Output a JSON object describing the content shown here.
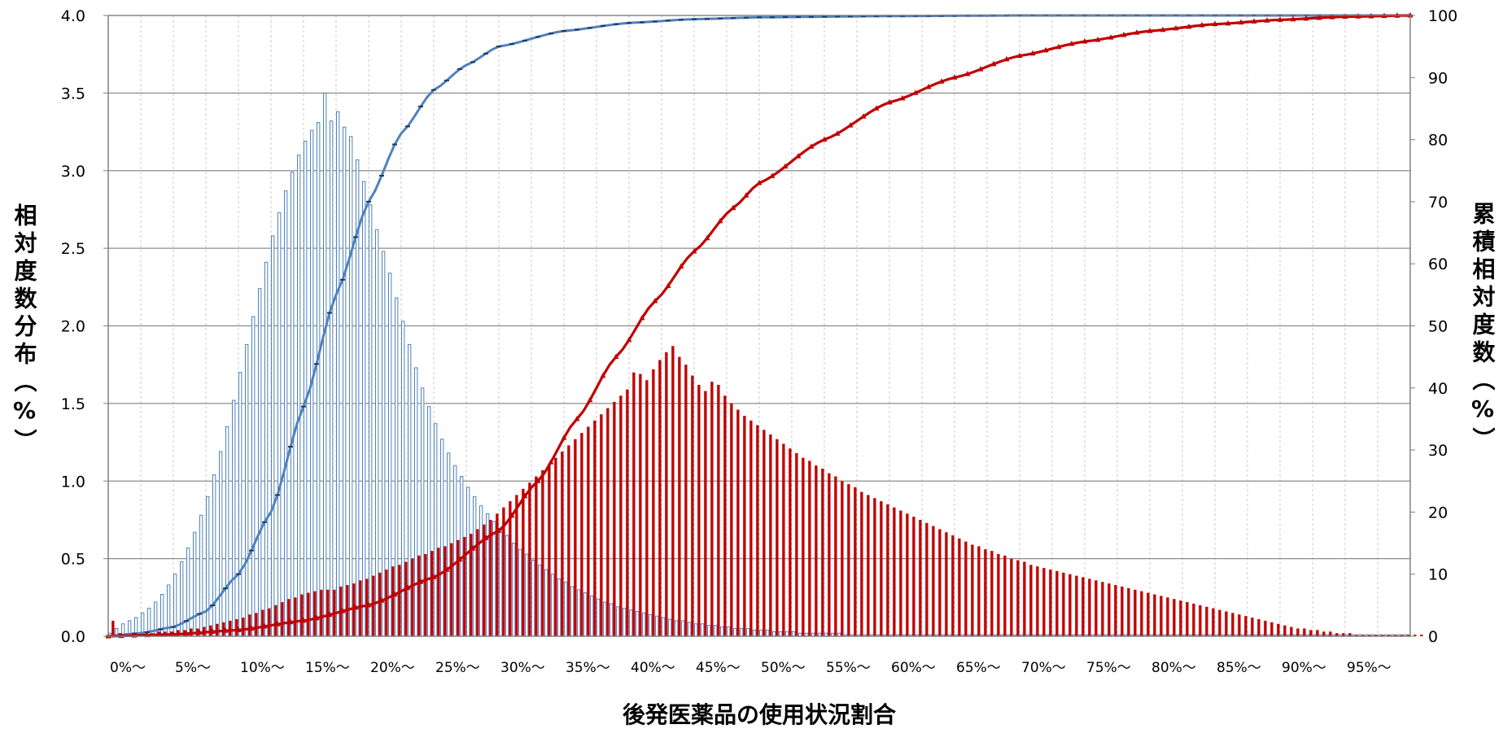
{
  "chart_data": {
    "type": "bar",
    "xlabel": "後発医薬品の使用状況割合",
    "ylabel_left": "相対度数分布（%）",
    "ylabel_right": "累積相対度数（%）",
    "ylim_left": [
      0,
      4.0
    ],
    "ylim_right": [
      0,
      100
    ],
    "yticks_left": [
      "0.0",
      "0.5",
      "1.0",
      "1.5",
      "2.0",
      "2.5",
      "3.0",
      "3.5",
      "4.0"
    ],
    "yticks_right": [
      "0",
      "10",
      "20",
      "30",
      "40",
      "50",
      "60",
      "70",
      "80",
      "90",
      "100"
    ],
    "x_tick_labels": [
      "0%～",
      "5%～",
      "10%～",
      "15%～",
      "20%～",
      "25%～",
      "30%～",
      "35%～",
      "40%～",
      "45%～",
      "50%～",
      "55%～",
      "60%～",
      "65%～",
      "70%～",
      "75%～",
      "80%～",
      "85%～",
      "90%～",
      "95%～"
    ],
    "grid": true,
    "series": [
      {
        "chart_type": "bar",
        "axis": "left",
        "color": "#4F81BD",
        "x_start": 0,
        "x_step": 0.5,
        "values": [
          0.02,
          0.05,
          0.08,
          0.1,
          0.12,
          0.15,
          0.18,
          0.22,
          0.27,
          0.33,
          0.4,
          0.48,
          0.57,
          0.67,
          0.78,
          0.9,
          1.04,
          1.19,
          1.35,
          1.52,
          1.7,
          1.88,
          2.06,
          2.24,
          2.41,
          2.58,
          2.73,
          2.87,
          2.99,
          3.1,
          3.19,
          3.26,
          3.31,
          3.5,
          3.32,
          3.38,
          3.28,
          3.22,
          3.07,
          2.93,
          2.78,
          2.62,
          2.48,
          2.34,
          2.18,
          2.03,
          1.88,
          1.73,
          1.6,
          1.48,
          1.37,
          1.27,
          1.18,
          1.1,
          1.03,
          0.96,
          0.9,
          0.84,
          0.79,
          0.74,
          0.69,
          0.65,
          0.6,
          0.56,
          0.53,
          0.49,
          0.46,
          0.43,
          0.4,
          0.37,
          0.35,
          0.32,
          0.3,
          0.28,
          0.26,
          0.24,
          0.22,
          0.21,
          0.19,
          0.18,
          0.17,
          0.16,
          0.15,
          0.14,
          0.13,
          0.12,
          0.11,
          0.1,
          0.1,
          0.09,
          0.08,
          0.08,
          0.07,
          0.07,
          0.06,
          0.06,
          0.05,
          0.05,
          0.05,
          0.04,
          0.04,
          0.04,
          0.03,
          0.03,
          0.03,
          0.03,
          0.02,
          0.02,
          0.02,
          0.02,
          0.02,
          0.02,
          0.02,
          0.01,
          0.01,
          0.01,
          0.01,
          0.01,
          0.01,
          0.01,
          0.01,
          0.01,
          0.01,
          0.01,
          0.01,
          0.01,
          0.01,
          0.01,
          0.01,
          0.01,
          0.01,
          0.01,
          0.01,
          0.01,
          0.01,
          0.01,
          0.01,
          0.01,
          0.01,
          0.01,
          0.01,
          0.01,
          0.01,
          0.01,
          0.01,
          0.01,
          0.01,
          0.01,
          0.01,
          0.01,
          0.01,
          0.01,
          0.01,
          0.01,
          0.01,
          0.01,
          0.01,
          0.01,
          0.01,
          0.01,
          0.01,
          0.01,
          0.01,
          0.01,
          0.01,
          0.01,
          0.01,
          0.01,
          0.01,
          0.01,
          0.01,
          0.01,
          0.01,
          0.01,
          0.01,
          0.01,
          0.01,
          0.01,
          0.01,
          0.01,
          0.01,
          0.01,
          0.01,
          0.01,
          0.01,
          0.01,
          0.01,
          0.01,
          0.01,
          0.01,
          0.01,
          0.01,
          0.01,
          0.01,
          0.01,
          0.01,
          0.01,
          0.01,
          0.01,
          0.01
        ]
      },
      {
        "chart_type": "bar",
        "axis": "left",
        "color": "#C00000",
        "x_start": 0,
        "x_step": 0.5,
        "values": [
          0.1,
          0.02,
          0.02,
          0.02,
          0.02,
          0.02,
          0.02,
          0.03,
          0.03,
          0.03,
          0.04,
          0.04,
          0.05,
          0.05,
          0.06,
          0.07,
          0.08,
          0.09,
          0.1,
          0.11,
          0.12,
          0.14,
          0.15,
          0.17,
          0.18,
          0.2,
          0.22,
          0.24,
          0.25,
          0.27,
          0.28,
          0.29,
          0.3,
          0.3,
          0.3,
          0.32,
          0.33,
          0.34,
          0.36,
          0.37,
          0.39,
          0.41,
          0.43,
          0.45,
          0.46,
          0.48,
          0.5,
          0.52,
          0.53,
          0.55,
          0.57,
          0.58,
          0.6,
          0.62,
          0.64,
          0.66,
          0.69,
          0.72,
          0.75,
          0.79,
          0.83,
          0.87,
          0.91,
          0.95,
          0.99,
          1.03,
          1.07,
          1.11,
          1.15,
          1.19,
          1.23,
          1.27,
          1.31,
          1.35,
          1.39,
          1.43,
          1.47,
          1.51,
          1.55,
          1.59,
          1.7,
          1.69,
          1.65,
          1.72,
          1.78,
          1.83,
          1.87,
          1.8,
          1.75,
          1.68,
          1.62,
          1.58,
          1.64,
          1.62,
          1.55,
          1.5,
          1.46,
          1.42,
          1.39,
          1.36,
          1.33,
          1.3,
          1.27,
          1.24,
          1.21,
          1.18,
          1.15,
          1.13,
          1.1,
          1.08,
          1.05,
          1.03,
          1.0,
          0.98,
          0.96,
          0.93,
          0.91,
          0.89,
          0.87,
          0.85,
          0.83,
          0.81,
          0.79,
          0.77,
          0.75,
          0.73,
          0.71,
          0.69,
          0.67,
          0.65,
          0.63,
          0.61,
          0.59,
          0.58,
          0.56,
          0.55,
          0.53,
          0.52,
          0.5,
          0.49,
          0.48,
          0.46,
          0.45,
          0.44,
          0.43,
          0.42,
          0.41,
          0.4,
          0.39,
          0.38,
          0.37,
          0.36,
          0.35,
          0.34,
          0.33,
          0.32,
          0.31,
          0.3,
          0.29,
          0.28,
          0.27,
          0.26,
          0.25,
          0.24,
          0.23,
          0.22,
          0.21,
          0.2,
          0.19,
          0.18,
          0.17,
          0.16,
          0.15,
          0.14,
          0.13,
          0.12,
          0.11,
          0.1,
          0.09,
          0.08,
          0.07,
          0.06,
          0.05,
          0.05,
          0.04,
          0.04,
          0.03,
          0.03,
          0.02,
          0.02,
          0.02,
          0.01,
          0.01,
          0.01,
          0.01,
          0.01,
          0.01,
          0.01,
          0.01,
          0.01,
          0.01,
          0.01
        ]
      },
      {
        "chart_type": "line",
        "axis": "right",
        "color": "#4F81BD",
        "marker": "dash",
        "description": "cumulative of blue distribution",
        "points": [
          [
            0,
            0
          ],
          [
            2.5,
            0.5
          ],
          [
            5,
            1.5
          ],
          [
            7.5,
            4
          ],
          [
            10,
            10
          ],
          [
            12.5,
            20
          ],
          [
            15,
            37
          ],
          [
            17.5,
            55
          ],
          [
            20,
            70
          ],
          [
            22.5,
            81
          ],
          [
            25,
            88
          ],
          [
            27.5,
            92
          ],
          [
            30,
            95
          ],
          [
            35,
            97.5
          ],
          [
            40,
            98.8
          ],
          [
            45,
            99.4
          ],
          [
            50,
            99.7
          ],
          [
            60,
            99.9
          ],
          [
            70,
            100
          ],
          [
            100,
            100
          ]
        ]
      },
      {
        "chart_type": "line",
        "axis": "right",
        "color": "#C00000",
        "marker": "triangle",
        "description": "cumulative of red distribution",
        "points": [
          [
            0,
            0
          ],
          [
            5,
            0.3
          ],
          [
            10,
            1
          ],
          [
            15,
            2.5
          ],
          [
            20,
            5
          ],
          [
            25,
            9.5
          ],
          [
            30,
            17
          ],
          [
            33,
            25
          ],
          [
            36,
            35
          ],
          [
            39,
            45
          ],
          [
            42,
            54
          ],
          [
            45,
            62
          ],
          [
            48,
            69
          ],
          [
            50,
            73
          ],
          [
            55,
            80
          ],
          [
            60,
            86
          ],
          [
            65,
            90
          ],
          [
            70,
            93.5
          ],
          [
            75,
            95.8
          ],
          [
            80,
            97.5
          ],
          [
            85,
            98.6
          ],
          [
            90,
            99.3
          ],
          [
            95,
            99.8
          ],
          [
            100,
            100
          ]
        ]
      }
    ]
  }
}
